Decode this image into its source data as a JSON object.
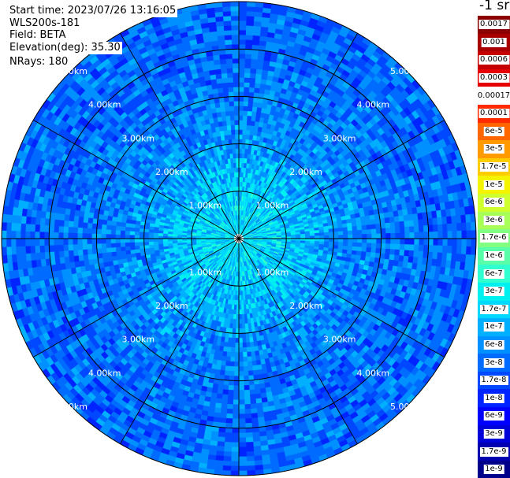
{
  "info": {
    "start_time": "Start time: 2023/07/26 13:16:05",
    "device": "WLS200s-181",
    "field": "Field: BETA",
    "elevation": "Elevation(deg): 35.30",
    "nrays": "NRays: 180"
  },
  "colorbar": {
    "unit_label": "-1 sr",
    "entries": [
      {
        "label": "0.0017",
        "color": "#8b0000"
      },
      {
        "label": "0.001",
        "color": "#a80000"
      },
      {
        "label": "0.0006",
        "color": "#c40000"
      },
      {
        "label": "0.0003",
        "color": "#e60000"
      },
      {
        "label": "0.00017",
        "color": "#ffffff",
        "gap": true
      },
      {
        "label": "0.0001",
        "color": "#ff2a00"
      },
      {
        "label": "6e-5",
        "color": "#ff6600"
      },
      {
        "label": "3e-5",
        "color": "#ff9a00"
      },
      {
        "label": "1.7e-5",
        "color": "#ffcc00"
      },
      {
        "label": "1e-5",
        "color": "#f4f400"
      },
      {
        "label": "6e-6",
        "color": "#d0ff30"
      },
      {
        "label": "3e-6",
        "color": "#a8ff58"
      },
      {
        "label": "1.7e-6",
        "color": "#80ff80"
      },
      {
        "label": "1e-6",
        "color": "#58ffa8"
      },
      {
        "label": "6e-7",
        "color": "#30ffd0"
      },
      {
        "label": "3e-7",
        "color": "#00f0f0"
      },
      {
        "label": "1.7e-7",
        "color": "#00d8ff"
      },
      {
        "label": "1e-7",
        "color": "#00b0ff"
      },
      {
        "label": "6e-8",
        "color": "#0090ff"
      },
      {
        "label": "3e-8",
        "color": "#006cff"
      },
      {
        "label": "1.7e-8",
        "color": "#0048ff"
      },
      {
        "label": "1e-8",
        "color": "#0024ff"
      },
      {
        "label": "6e-9",
        "color": "#0000ff"
      },
      {
        "label": "3e-9",
        "color": "#0000d8"
      },
      {
        "label": "1.7e-9",
        "color": "#0000b0"
      },
      {
        "label": "1e-9",
        "color": "#00008b"
      }
    ]
  },
  "chart_data": {
    "type": "heatmap",
    "projection": "polar (PPI scan)",
    "field": "BETA",
    "elevation_deg": 35.3,
    "n_rays": 180,
    "range_max_km": 5.0,
    "range_rings_km": [
      1.0,
      2.0,
      3.0,
      4.0,
      5.0
    ],
    "ring_labels": [
      "1.00km",
      "2.00km",
      "3.00km",
      "4.00km",
      "5.00km"
    ],
    "azimuth_lines_deg": [
      0,
      30,
      60,
      90,
      120,
      150,
      180,
      210,
      240,
      270,
      300,
      330
    ],
    "color_scale": "log",
    "value_range": [
      1e-09,
      0.0017
    ],
    "approx_values_by_range_km": [
      {
        "range_km": 0.5,
        "value": 2e-07
      },
      {
        "range_km": 1.0,
        "value": 1.5e-07
      },
      {
        "range_km": 1.5,
        "value": 1e-07
      },
      {
        "range_km": 2.0,
        "value": 6e-08
      },
      {
        "range_km": 3.0,
        "value": 4e-08
      },
      {
        "range_km": 4.0,
        "value": 3e-08
      },
      {
        "range_km": 5.0,
        "value": 3e-08
      }
    ]
  }
}
